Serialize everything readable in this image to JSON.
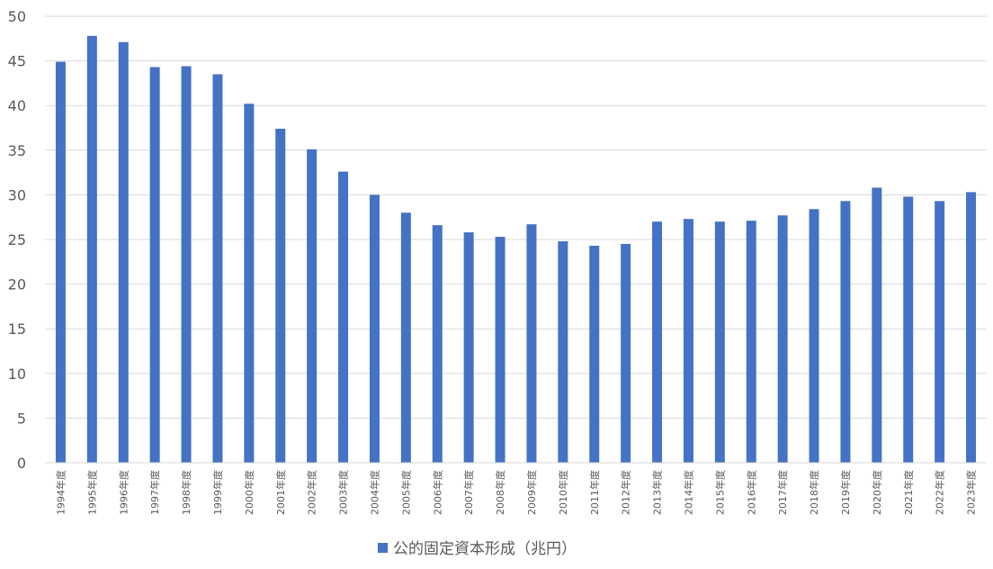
{
  "chart_data": {
    "type": "bar",
    "categories": [
      "1994年度",
      "1995年度",
      "1996年度",
      "1997年度",
      "1998年度",
      "1999年度",
      "2000年度",
      "2001年度",
      "2002年度",
      "2003年度",
      "2004年度",
      "2005年度",
      "2006年度",
      "2007年度",
      "2008年度",
      "2009年度",
      "2010年度",
      "2011年度",
      "2012年度",
      "2013年度",
      "2014年度",
      "2015年度",
      "2016年度",
      "2017年度",
      "2018年度",
      "2019年度",
      "2020年度",
      "2021年度",
      "2022年度",
      "2023年度"
    ],
    "series": [
      {
        "name": "公的固定資本形成（兆円）",
        "values": [
          44.9,
          47.8,
          47.1,
          44.3,
          44.4,
          43.5,
          40.2,
          37.4,
          35.1,
          32.6,
          30.0,
          28.0,
          26.6,
          25.8,
          25.3,
          26.7,
          24.8,
          24.3,
          24.5,
          27.0,
          27.3,
          27.0,
          27.1,
          27.7,
          28.4,
          29.3,
          30.8,
          29.8,
          29.3,
          30.3
        ],
        "color": "#4472C4"
      }
    ],
    "title": "",
    "xlabel": "",
    "ylabel": "",
    "ylim": [
      0,
      50
    ],
    "yticks": [
      "0",
      "5",
      "10",
      "15",
      "20",
      "25",
      "30",
      "35",
      "40",
      "45",
      "50"
    ],
    "grid": true,
    "legend_position": "bottom",
    "colors": {
      "bar": "#4472C4",
      "grid": "#D9D9D9",
      "axis_text": "#595959"
    }
  }
}
